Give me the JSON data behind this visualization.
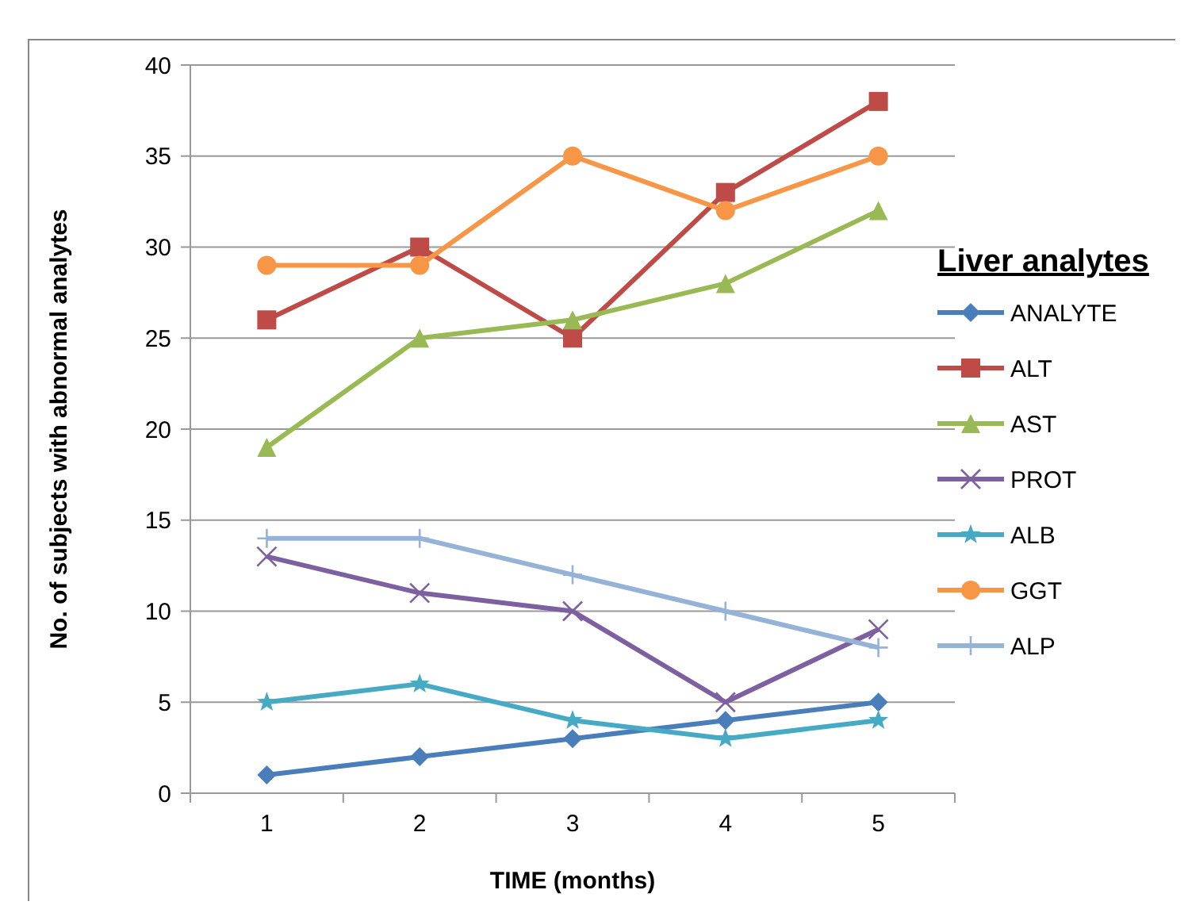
{
  "chart_data": {
    "type": "line",
    "xlabel": "TIME (months)",
    "ylabel": "No. of subjects with abnormal analytes",
    "legend_title": "Liver analytes",
    "categories": [
      "1",
      "2",
      "3",
      "4",
      "5"
    ],
    "ylim": [
      0,
      40
    ],
    "yticks": [
      0,
      5,
      10,
      15,
      20,
      25,
      30,
      35,
      40
    ],
    "grid": "y",
    "legend": "right",
    "series": [
      {
        "name": "ANALYTE",
        "color": "#4a7ebb",
        "marker": "diamond",
        "values": [
          1,
          2,
          3,
          4,
          5
        ]
      },
      {
        "name": "ALT",
        "color": "#be4b48",
        "marker": "square",
        "values": [
          26,
          30,
          25,
          33,
          38
        ]
      },
      {
        "name": "AST",
        "color": "#98b954",
        "marker": "triangle",
        "values": [
          19,
          25,
          26,
          28,
          32
        ]
      },
      {
        "name": "PROT",
        "color": "#7d60a0",
        "marker": "cross",
        "values": [
          13,
          11,
          10,
          5,
          9
        ]
      },
      {
        "name": "ALB",
        "color": "#46aac5",
        "marker": "star",
        "values": [
          5,
          6,
          4,
          3,
          4
        ]
      },
      {
        "name": "GGT",
        "color": "#f79646",
        "marker": "circle",
        "values": [
          29,
          29,
          35,
          32,
          35
        ]
      },
      {
        "name": "ALP",
        "color": "#95b3d7",
        "marker": "plus",
        "values": [
          14,
          14,
          12,
          10,
          8
        ]
      }
    ]
  }
}
